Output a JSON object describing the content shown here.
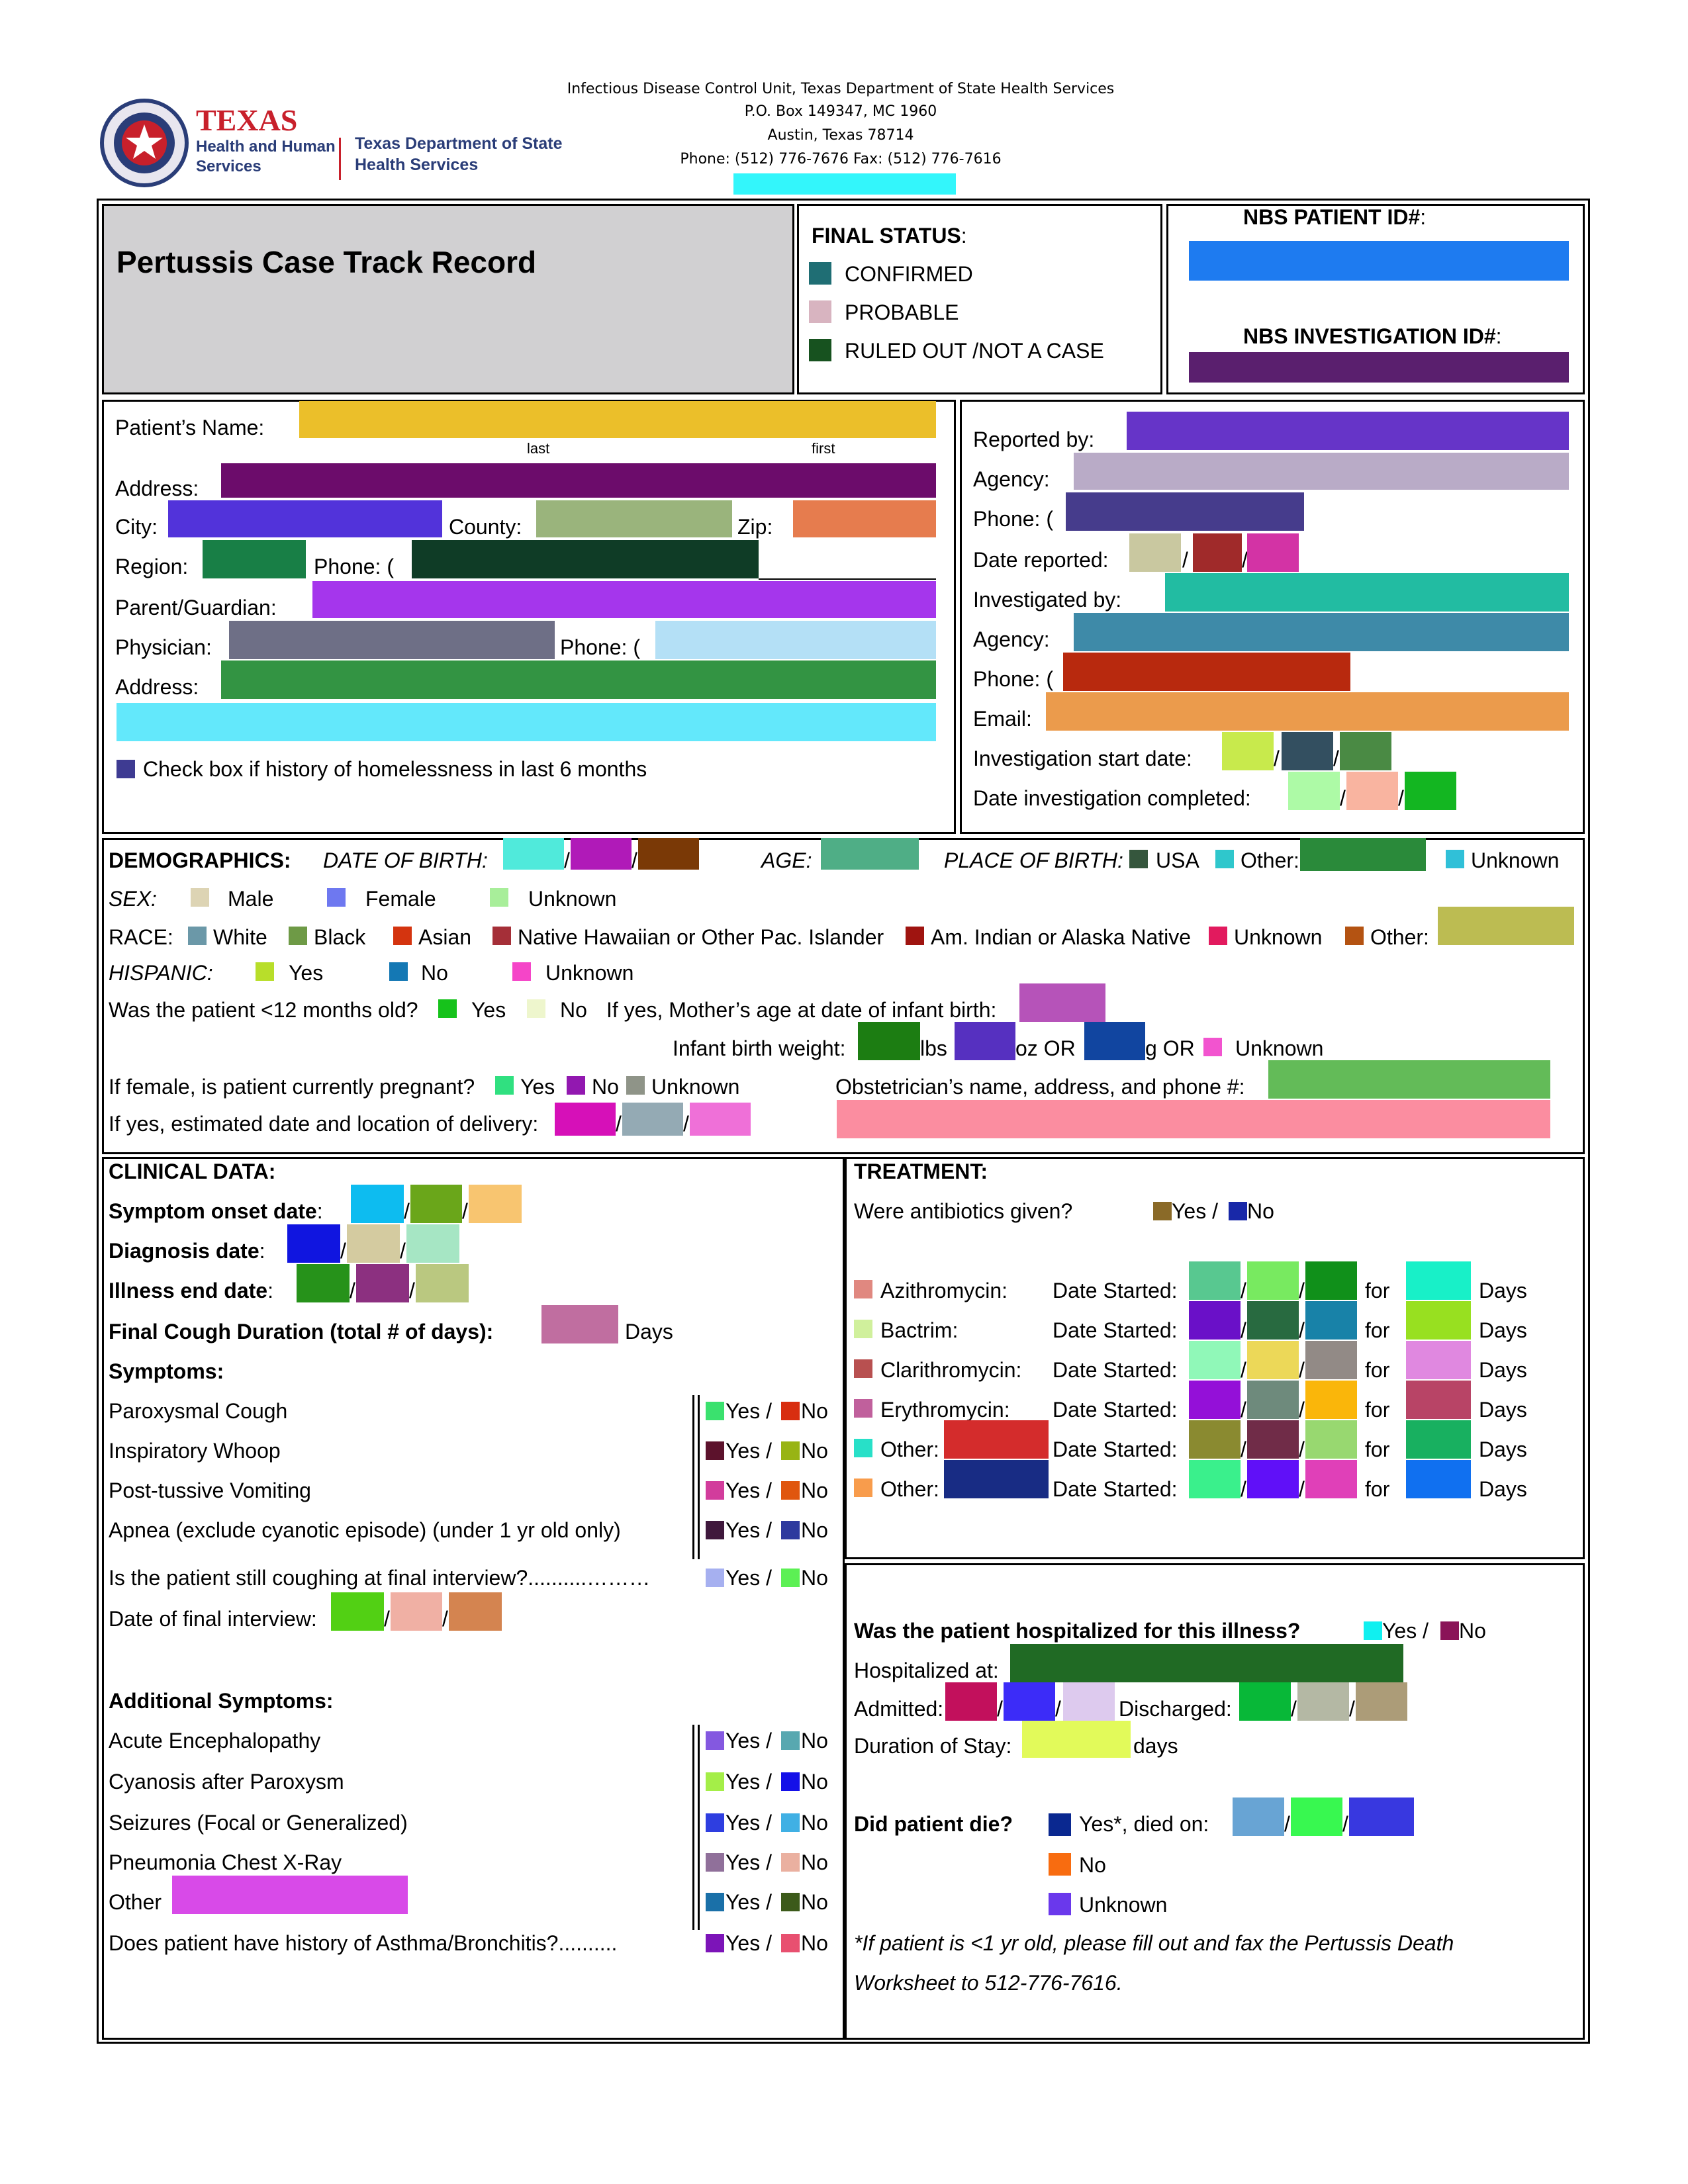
{
  "header": {
    "line1": "Infectious Disease Control Unit, Texas Department of State Health Services",
    "line2": "P.O. Box 149347, MC 1960",
    "line3": "Austin, Texas 78714",
    "line4": "Phone: (512) 776-7676   Fax: (512) 776-7616",
    "logo_texas": "TEXAS",
    "logo_hhs1": "Health and Human",
    "logo_hhs2": "Services",
    "logo_dshs1": "Texas Department of State",
    "logo_dshs2": "Health Services"
  },
  "title": "Pertussis Case Track Record",
  "final_status": {
    "label": "FINAL STATUS",
    "colon": ":",
    "options": [
      "CONFIRMED",
      "PROBABLE",
      "RULED OUT /NOT A CASE"
    ],
    "colors": [
      "#1f6e74",
      "#d8b4c0",
      "#17521f"
    ]
  },
  "nbs": {
    "patient_id_label": "NBS PATIENT ID#",
    "investigation_id_label": "NBS INVESTIGATION ID#",
    "colon": ":"
  },
  "patient": {
    "name_label": "Patient’s Name:",
    "last": "last",
    "first": "first",
    "address_label": "Address:",
    "city_label": "City:",
    "county_label": "County:",
    "zip_label": "Zip:",
    "region_label": "Region:",
    "phone_label": "Phone: (",
    "guardian_label": "Parent/Guardian:",
    "physician_label": "Physician:",
    "physician_phone_label": "Phone: (",
    "physician_address_label": "Address:",
    "homeless_label": "Check box if history of homelessness in last 6 months"
  },
  "reporter": {
    "reported_by": "Reported by:",
    "agency": "Agency:",
    "phone": "Phone: (",
    "date_reported": "Date reported:",
    "investigated_by": "Investigated by:",
    "agency2": "Agency:",
    "phone2": "Phone: (",
    "email": "Email:",
    "start_date": "Investigation start date:",
    "completed": "Date investigation completed:"
  },
  "demographics": {
    "heading": "DEMOGRAPHICS:",
    "dob": "DATE OF BIRTH:",
    "age": "AGE:",
    "pob": "PLACE OF BIRTH:",
    "usa": "USA",
    "other": "Other:",
    "unknown": "Unknown",
    "sex": "SEX:",
    "male": "Male",
    "female": "Female",
    "sex_unknown": "Unknown",
    "race": "RACE:",
    "white": "White",
    "black": "Black",
    "asian": "Asian",
    "nhpi": "Native Hawaiian or Other Pac. Islander",
    "aian": "Am. Indian or Alaska Native",
    "race_unknown": "Unknown",
    "race_other": "Other:",
    "hispanic": "HISPANIC:",
    "yes": "Yes",
    "no": "No",
    "hisp_unknown": "Unknown",
    "under12": "Was the patient <12 months old?",
    "u_yes": "Yes",
    "u_no": "No",
    "mother_age": "If yes, Mother’s age at date of infant birth:",
    "birth_weight": "Infant birth weight:",
    "lbs": "lbs",
    "oz_or": "oz OR",
    "g_or": "g OR",
    "bw_unknown": "Unknown",
    "pregnant": "If female, is patient currently pregnant?",
    "p_yes": "Yes",
    "p_no": "No",
    "p_unknown": "Unknown",
    "obstetrician": "Obstetrician’s name, address, and phone #:",
    "delivery": "If yes, estimated date and location of delivery:"
  },
  "clinical": {
    "heading": "CLINICAL DATA:",
    "onset": "Symptom onset date",
    "diagnosis": "Diagnosis date",
    "illness_end": "Illness end date",
    "colon": ":",
    "cough_duration": "Final Cough Duration (total # of days):",
    "days": "Days",
    "symptoms": "Symptoms:",
    "symptom_list": [
      "Paroxysmal Cough",
      "Inspiratory Whoop",
      "Post-tussive Vomiting",
      "Apnea (exclude cyanotic episode) (under 1 yr old only)"
    ],
    "still_coughing": "Is the patient still coughing at final interview?..........………",
    "final_interview": "Date of final interview:",
    "additional": "Additional Symptoms:",
    "additional_list": [
      "Acute Encephalopathy",
      "Cyanosis after Paroxysm",
      "Seizures (Focal or Generalized)",
      "Pneumonia Chest X-Ray",
      "Other"
    ],
    "asthma": "Does patient have history of Asthma/Bronchitis?..........",
    "yes_slash": "Yes / ",
    "no": "No"
  },
  "treatment": {
    "heading": "TREATMENT:",
    "antibiotics": "Were antibiotics given?",
    "yes_slash": "Yes / ",
    "no": "No",
    "drugs": [
      "Azithromycin:",
      "Bactrim:",
      "Clarithromycin:",
      "Erythromycin:",
      "Other:",
      "Other:"
    ],
    "date_started": "Date Started:",
    "for": "for",
    "days": "Days"
  },
  "hospital": {
    "question": "Was the patient hospitalized for this illness?",
    "yes_slash": "Yes / ",
    "no": "No",
    "hospitalized_at": "Hospitalized at:",
    "admitted": "Admitted:",
    "discharged": "Discharged:",
    "duration": "Duration of Stay:",
    "days": "days",
    "die": "Did patient die?",
    "died_on": "Yes*, died on:",
    "die_no": "No",
    "die_unknown": "Unknown",
    "note1": "*If patient is <1 yr old, please fill out and fax the Pertussis Death",
    "note2": "Worksheet to 512-776-7616."
  },
  "colors": {
    "nbs_patient": "#1e7bf0",
    "nbs_investigation": "#5a1f6e",
    "title_bg": "#d1d0d2"
  }
}
